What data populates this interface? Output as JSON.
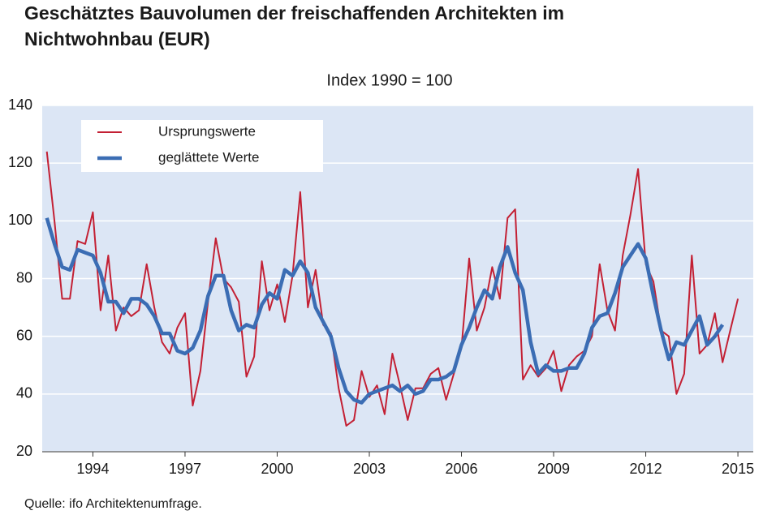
{
  "chart_data": {
    "type": "line",
    "title": [
      "Geschätztes Bauvolumen der freischaffenden Architekten im",
      "Nichtwohnbau (EUR)"
    ],
    "subtitle": "Index 1990 = 100",
    "source": "Quelle: ifo Architektenumfrage.",
    "x": [
      1993,
      1993.25,
      1993.5,
      1993.75,
      1994,
      1994.25,
      1994.5,
      1994.75,
      1995,
      1995.25,
      1995.5,
      1995.75,
      1996,
      1996.25,
      1996.5,
      1996.75,
      1997,
      1997.25,
      1997.5,
      1997.75,
      1998,
      1998.25,
      1998.5,
      1998.75,
      1999,
      1999.25,
      1999.5,
      1999.75,
      2000,
      2000.25,
      2000.5,
      2000.75,
      2001,
      2001.25,
      2001.5,
      2001.75,
      2002,
      2002.25,
      2002.5,
      2002.75,
      2003,
      2003.25,
      2003.5,
      2003.75,
      2004,
      2004.25,
      2004.5,
      2004.75,
      2005,
      2005.25,
      2005.5,
      2005.75,
      2006,
      2006.25,
      2006.5,
      2006.75,
      2007,
      2007.25,
      2007.5,
      2007.75,
      2008,
      2008.25,
      2008.5,
      2008.75,
      2009,
      2009.25,
      2009.5,
      2009.75,
      2010,
      2010.25,
      2010.5,
      2010.75,
      2011,
      2011.25,
      2011.5,
      2011.75,
      2012,
      2012.25,
      2012.5,
      2012.75,
      2013,
      2013.25,
      2013.5,
      2013.75,
      2014,
      2014.25,
      2014.5,
      2014.75,
      2015,
      2015.25,
      2015.5
    ],
    "series": [
      {
        "name": "Ursprungswerte",
        "color": "#c32034",
        "width": 2,
        "values": [
          124,
          100,
          73,
          73,
          93,
          92,
          103,
          69,
          88,
          62,
          70,
          67,
          69,
          85,
          70,
          58,
          54,
          63,
          68,
          36,
          48,
          72,
          94,
          80,
          77,
          72,
          46,
          53,
          86,
          69,
          78,
          65,
          81,
          110,
          70,
          83,
          64,
          61,
          42,
          29,
          31,
          48,
          39,
          43,
          33,
          54,
          43,
          31,
          42,
          42,
          47,
          49,
          38,
          47,
          56,
          87,
          62,
          70,
          84,
          73,
          101,
          104,
          45,
          50,
          46,
          49,
          55,
          41,
          50,
          53,
          55,
          60,
          85,
          69,
          62,
          88,
          102,
          118,
          85,
          79,
          62,
          60,
          40,
          47,
          88,
          54,
          57,
          68,
          51,
          62,
          73
        ]
      },
      {
        "name": "geglättete Werte",
        "color": "#3b6db4",
        "width": 4.5,
        "values": [
          101,
          92,
          84,
          83,
          90,
          89,
          88,
          82,
          72,
          72,
          68,
          73,
          73,
          71,
          67,
          61,
          61,
          55,
          54,
          56,
          62,
          74,
          81,
          81,
          69,
          62,
          64,
          63,
          71,
          75,
          73,
          83,
          81,
          86,
          82,
          70,
          65,
          60,
          49,
          41,
          38,
          37,
          40,
          41,
          42,
          43,
          41,
          43,
          40,
          41,
          45,
          45,
          46,
          48,
          57,
          63,
          70,
          76,
          73,
          84,
          91,
          82,
          76,
          58,
          47,
          50,
          48,
          48,
          49,
          49,
          54,
          63,
          67,
          68,
          75,
          84,
          88,
          92,
          87,
          74,
          62,
          52,
          58,
          57,
          62,
          67,
          57,
          60,
          64,
          null,
          null
        ]
      }
    ],
    "xlim": [
      1992.85,
      2016
    ],
    "xticks": [
      {
        "value": 1994.5,
        "label": "1994"
      },
      {
        "value": 1997.5,
        "label": "1997"
      },
      {
        "value": 2000.5,
        "label": "2000"
      },
      {
        "value": 2003.5,
        "label": "2003"
      },
      {
        "value": 2006.5,
        "label": "2006"
      },
      {
        "value": 2009.5,
        "label": "2009"
      },
      {
        "value": 2012.5,
        "label": "2012"
      },
      {
        "value": 2015.5,
        "label": "2015"
      }
    ],
    "ylim": [
      20,
      140
    ],
    "yticks": [
      20,
      40,
      60,
      80,
      100,
      120,
      140
    ],
    "grid": true,
    "legend": "upper left",
    "background": "#dce6f5"
  }
}
